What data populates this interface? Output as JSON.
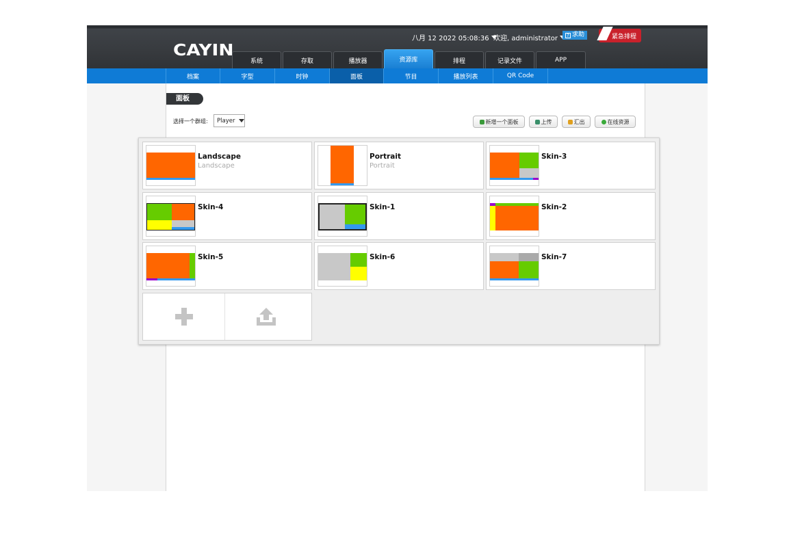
{
  "header": {
    "logo": "CAYIN",
    "datetime": "八月 12 2022 05:08:36",
    "welcome": "欢迎, administrator",
    "help_label": "求助",
    "emergency_label": "紧急排程"
  },
  "main_tabs": [
    {
      "label": "系统"
    },
    {
      "label": "存取"
    },
    {
      "label": "播放器"
    },
    {
      "label": "资源库"
    },
    {
      "label": "排程"
    },
    {
      "label": "记录文件"
    },
    {
      "label": "APP"
    }
  ],
  "active_main_tab": "资源库",
  "sub_tabs": [
    {
      "label": "档案"
    },
    {
      "label": "字型"
    },
    {
      "label": "时钟"
    },
    {
      "label": "面板"
    },
    {
      "label": "节目"
    },
    {
      "label": "播放列表"
    },
    {
      "label": "QR Code"
    }
  ],
  "active_sub_tab": "面板",
  "page": {
    "title": "面板",
    "group_label": "选择一个群组:",
    "group_value": "Player"
  },
  "toolbar": {
    "add_panel": "新增一个面板",
    "upload": "上传",
    "export": "汇出",
    "online_resources": "在线资源"
  },
  "skins": [
    {
      "name": "Landscape",
      "sub": "Landscape"
    },
    {
      "name": "Portrait",
      "sub": "Portrait"
    },
    {
      "name": "Skin-3",
      "sub": ""
    },
    {
      "name": "Skin-4",
      "sub": ""
    },
    {
      "name": "Skin-1",
      "sub": ""
    },
    {
      "name": "Skin-2",
      "sub": ""
    },
    {
      "name": "Skin-5",
      "sub": ""
    },
    {
      "name": "Skin-6",
      "sub": ""
    },
    {
      "name": "Skin-7",
      "sub": ""
    }
  ],
  "colors": {
    "orange": "#ff6600",
    "green": "#66cc00",
    "yellow": "#ffff00",
    "gray": "#c8c8c8",
    "blue": "#3399ee",
    "purple": "#9900cc",
    "accent_blue": "#0f7bd6",
    "emergency_red": "#c9212b"
  },
  "icons": {
    "add_skin": "plus-icon",
    "upload_skin": "upload-icon"
  }
}
